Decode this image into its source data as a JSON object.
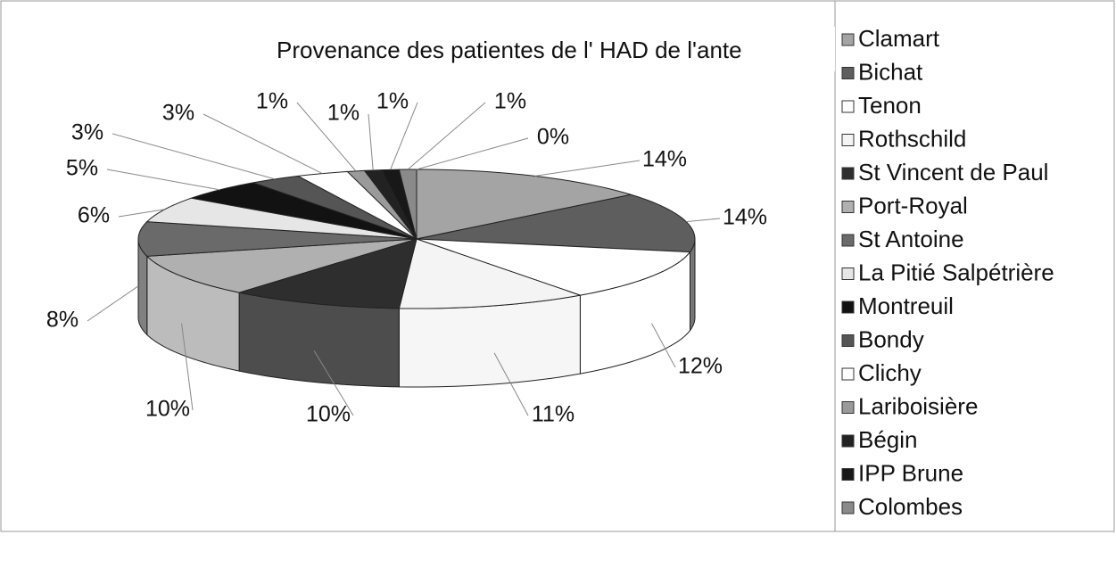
{
  "chart_data": {
    "type": "pie3d",
    "title": "Provenance des patientes de l' HAD de l'ante",
    "categories": [
      "Clamart",
      "Bichat",
      "Tenon",
      "Rothschild",
      "St Vincent de Paul",
      "Port-Royal",
      "St Antoine",
      "La Pitié Salpétrière",
      "Montreuil",
      "Bondy",
      "Clichy",
      "Lariboisière",
      "Bégin",
      "IPP Brune",
      "Colombes",
      null
    ],
    "values": [
      14,
      14,
      12,
      11,
      10,
      10,
      8,
      6,
      5,
      3,
      3,
      1,
      1,
      1,
      1,
      0
    ],
    "value_labels": [
      "14%",
      "14%",
      "12%",
      "11%",
      "10%",
      "10%",
      "8%",
      "6%",
      "5%",
      "3%",
      "3%",
      "1%",
      "1%",
      "1%",
      "1%",
      "0%"
    ],
    "colors": [
      "#a4a4a4",
      "#5e5e5e",
      "#ffffff",
      "#f4f4f4",
      "#2e2e2e",
      "#b0b0b0",
      "#6a6a6a",
      "#e6e6e6",
      "#121212",
      "#555555",
      "#ffffff",
      "#9a9a9a",
      "#222222",
      "#181818",
      "#8a8a8a",
      "#bbbbbb"
    ],
    "legend": "right"
  }
}
